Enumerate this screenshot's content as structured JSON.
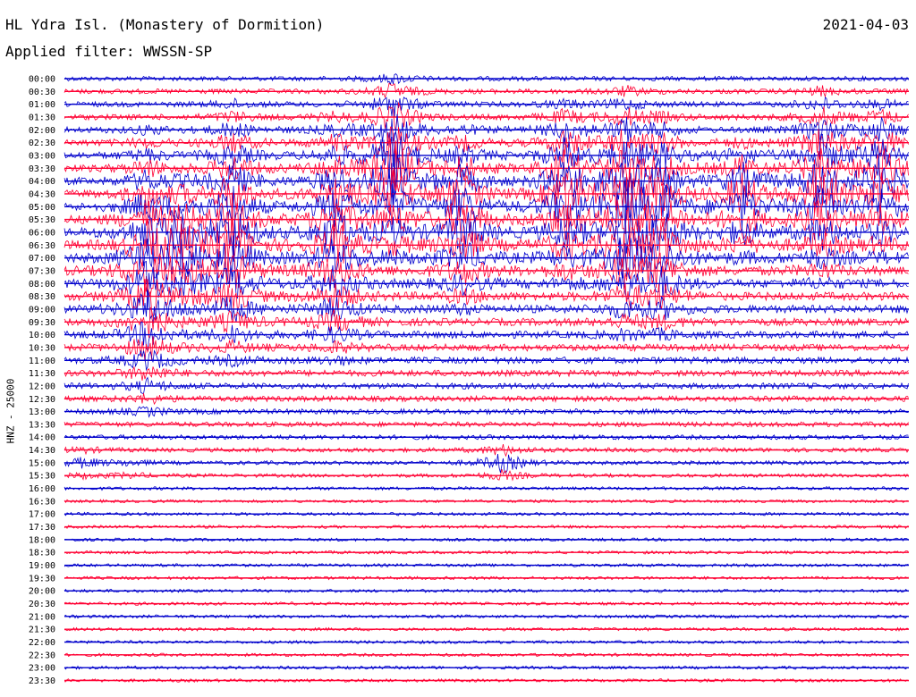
{
  "header": {
    "station": "HL Ydra Isl. (Monastery of Dormition)",
    "filter": "Applied filter: WWSSN-SP",
    "date": "2021-04-03"
  },
  "chart_data": {
    "type": "line",
    "title": "HL Ydra Isl. (Monastery of Dormition)",
    "subtitle": "Applied filter: WWSSN-SP",
    "ylabel": "HNZ - 25000",
    "xlabel": "",
    "row_labels": [
      "00:00",
      "00:30",
      "01:00",
      "01:30",
      "02:00",
      "02:30",
      "03:00",
      "03:30",
      "04:00",
      "04:30",
      "05:00",
      "05:30",
      "06:00",
      "06:30",
      "07:00",
      "07:30",
      "08:00",
      "08:30",
      "09:00",
      "09:30",
      "10:00",
      "10:30",
      "11:00",
      "11:30",
      "12:00",
      "12:30",
      "13:00",
      "13:30",
      "14:00",
      "14:30",
      "15:00",
      "15:30",
      "16:00",
      "16:30",
      "17:00",
      "17:30",
      "18:00",
      "18:30",
      "19:00",
      "19:30",
      "20:00",
      "20:30",
      "21:00",
      "21:30",
      "22:00",
      "22:30",
      "23:00",
      "23:30"
    ],
    "row_colors": [
      "#0000cc",
      "#ff0033"
    ],
    "grid": false,
    "legend": "none"
  }
}
